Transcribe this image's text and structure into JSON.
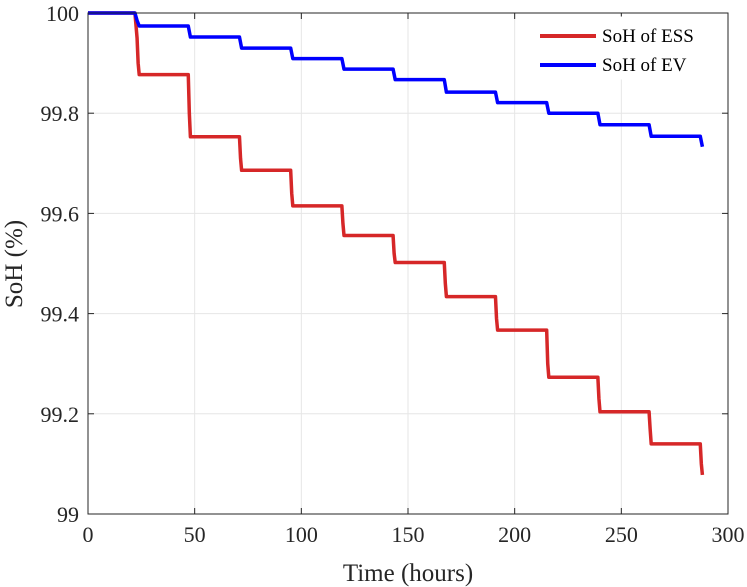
{
  "chart_data": {
    "type": "line",
    "title": "",
    "xlabel": "Time (hours)",
    "ylabel": "SoH (%)",
    "xlim": [
      0,
      300
    ],
    "ylim": [
      99,
      100
    ],
    "xticks": [
      0,
      50,
      100,
      150,
      200,
      250,
      300
    ],
    "xtick_labels": [
      "0",
      "50",
      "100",
      "150",
      "200",
      "250",
      "300"
    ],
    "yticks": [
      99,
      99.2,
      99.4,
      99.6,
      99.8,
      100
    ],
    "ytick_labels": [
      "99",
      "99.2",
      "99.4",
      "99.6",
      "99.8",
      "100"
    ],
    "grid": true,
    "legend_position": "top-right",
    "series": [
      {
        "name": "SoH of ESS",
        "color": "#D62728",
        "x": [
          0,
          22,
          23,
          23.5,
          24,
          47,
          47.5,
          48,
          71,
          71.5,
          72,
          95,
          95.5,
          96,
          119,
          119.5,
          120,
          143,
          143.5,
          144,
          167,
          167.5,
          168,
          191,
          191.5,
          192,
          215,
          215.5,
          216,
          239,
          239.5,
          240,
          263,
          263.5,
          264,
          287,
          287.5,
          288
        ],
        "y": [
          100,
          100,
          99.95,
          99.9,
          99.877,
          99.877,
          99.8,
          99.753,
          99.753,
          99.71,
          99.686,
          99.686,
          99.64,
          99.615,
          99.615,
          99.58,
          99.556,
          99.556,
          99.52,
          99.502,
          99.502,
          99.46,
          99.434,
          99.434,
          99.39,
          99.367,
          99.367,
          99.3,
          99.273,
          99.273,
          99.23,
          99.204,
          99.204,
          99.17,
          99.14,
          99.14,
          99.1,
          99.078
        ]
      },
      {
        "name": "SoH of EV",
        "color": "#0000FF",
        "x": [
          0,
          22,
          23,
          24,
          47,
          48,
          71,
          72,
          95,
          96,
          119,
          120,
          143,
          144,
          167,
          168,
          191,
          192,
          215,
          216,
          239,
          240,
          263,
          264,
          287,
          288
        ],
        "y": [
          100,
          100,
          99.985,
          99.974,
          99.974,
          99.952,
          99.952,
          99.93,
          99.93,
          99.909,
          99.909,
          99.888,
          99.888,
          99.867,
          99.867,
          99.842,
          99.842,
          99.821,
          99.821,
          99.8,
          99.8,
          99.777,
          99.777,
          99.754,
          99.754,
          99.733
        ]
      }
    ]
  }
}
